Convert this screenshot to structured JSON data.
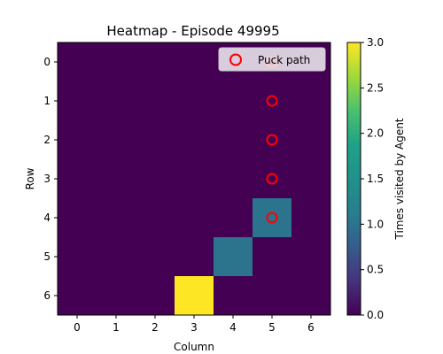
{
  "chart_data": {
    "type": "heatmap",
    "title": "Heatmap - Episode 49995",
    "xlabel": "Column",
    "ylabel": "Row",
    "x_ticks": [
      "0",
      "1",
      "2",
      "3",
      "4",
      "5",
      "6"
    ],
    "y_ticks": [
      "0",
      "1",
      "2",
      "3",
      "4",
      "5",
      "6"
    ],
    "values": [
      [
        0,
        0,
        0,
        0,
        0,
        0,
        0
      ],
      [
        0,
        0,
        0,
        0,
        0,
        0,
        0
      ],
      [
        0,
        0,
        0,
        0,
        0,
        0,
        0
      ],
      [
        0,
        0,
        0,
        0,
        0,
        0,
        0
      ],
      [
        0,
        0,
        0,
        0,
        0,
        1,
        0
      ],
      [
        0,
        0,
        0,
        0,
        1,
        0,
        0
      ],
      [
        0,
        0,
        0,
        3,
        0,
        0,
        0
      ]
    ],
    "colormap": "viridis",
    "vmin": 0,
    "vmax": 3,
    "colorbar": {
      "label": "Times visited by Agent",
      "ticks": [
        "0.0",
        "0.5",
        "1.0",
        "1.5",
        "2.0",
        "2.5",
        "3.0"
      ]
    },
    "overlay": {
      "name": "Puck path",
      "marker": "circle",
      "color": "#ff0000",
      "points": [
        {
          "row": 0,
          "col": 5
        },
        {
          "row": 1,
          "col": 5
        },
        {
          "row": 2,
          "col": 5
        },
        {
          "row": 3,
          "col": 5
        },
        {
          "row": 4,
          "col": 5
        }
      ]
    },
    "legend_position": "top-right"
  }
}
